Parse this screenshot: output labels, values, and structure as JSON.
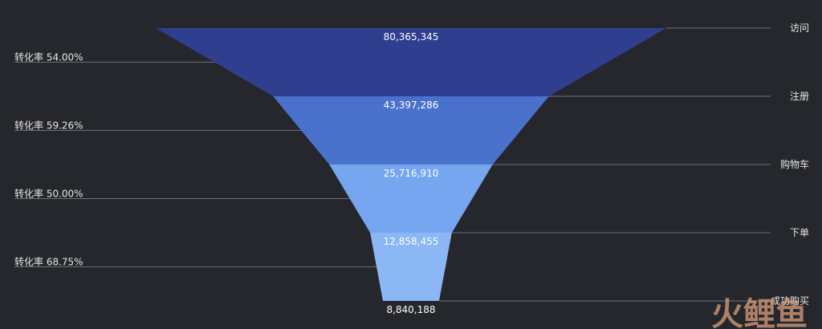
{
  "chart_data": {
    "type": "funnel",
    "title": "",
    "stages": [
      "访问",
      "注册",
      "购物车",
      "下单",
      "成功购买"
    ],
    "values": [
      80365345,
      43397286,
      25716910,
      12858455,
      8840188
    ],
    "value_labels": [
      "80,365,345",
      "43,397,286",
      "25,716,910",
      "12,858,455",
      "8,840,188"
    ],
    "conversion_rates": [
      "转化率 54.00%",
      "转化率 59.26%",
      "转化率 50.00%",
      "转化率 68.75%"
    ],
    "colors": [
      "#2f3e8f",
      "#4a72cc",
      "#76a6ef",
      "#8bb8f5",
      "#a6cff9"
    ],
    "legend": "right",
    "grid": false
  },
  "watermark": "火鲤鱼"
}
